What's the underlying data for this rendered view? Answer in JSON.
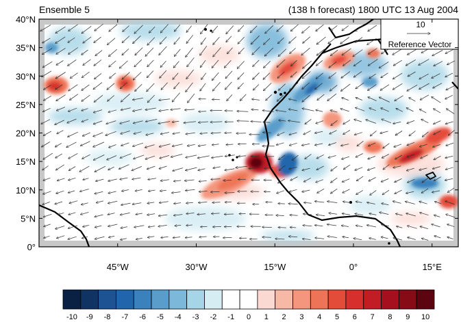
{
  "header": {
    "left_title": "Ensemble 5",
    "right_title": "(138 h forecast) 1800 UTC 13 Aug 2004"
  },
  "map": {
    "lon_range": [
      -60,
      20
    ],
    "lat_range": [
      0,
      40
    ],
    "y_tick_labels": [
      "0°",
      "5°N",
      "10°N",
      "15°N",
      "20°N",
      "25°N",
      "30°N",
      "35°N",
      "40°N"
    ],
    "x_tick_labels": [
      "45°W",
      "30°W",
      "15°W",
      "0°",
      "15°E"
    ],
    "x_tick_lons": [
      -45,
      -30,
      -15,
      0,
      15
    ],
    "y_tick_lats": [
      0,
      5,
      10,
      15,
      20,
      25,
      30,
      35,
      40
    ]
  },
  "reference_vector": {
    "magnitude_label": "10",
    "caption": "Reference Vector"
  },
  "colorbar": {
    "labels": [
      "-10",
      "-9",
      "-8",
      "-7",
      "-6",
      "-5",
      "-4",
      "-3",
      "-2",
      "-1",
      "0",
      "1",
      "2",
      "3",
      "4",
      "5",
      "6",
      "7",
      "8",
      "9",
      "10"
    ],
    "colors": [
      "#0b2143",
      "#0f3464",
      "#1d5393",
      "#2166ac",
      "#3b81bc",
      "#5a9dcb",
      "#7bb8d9",
      "#a5d5e6",
      "#d6edf4",
      "#ffffff",
      "#ffffff",
      "#fbd9d3",
      "#f7b9a6",
      "#f4967e",
      "#ee7457",
      "#e44c3a",
      "#d7302c",
      "#c21d25",
      "#a60f1d",
      "#860b16",
      "#5c0510"
    ]
  }
}
